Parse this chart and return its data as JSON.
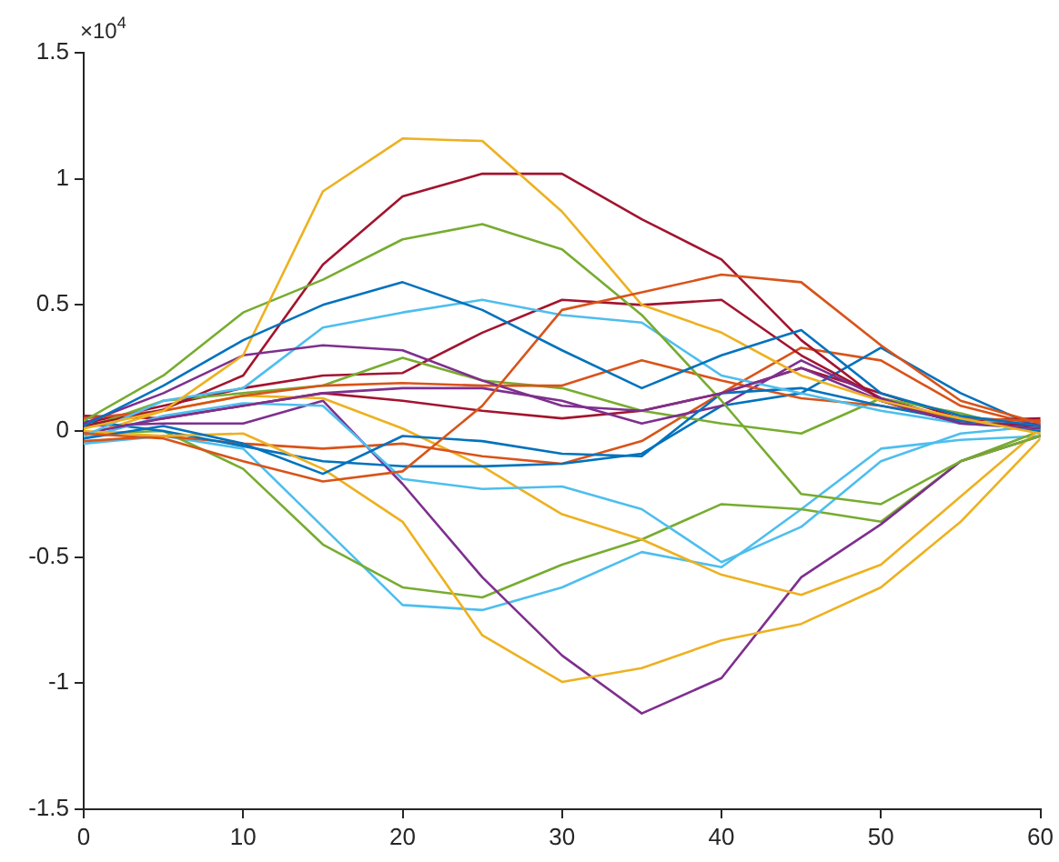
{
  "chart_data": {
    "type": "line",
    "x": [
      0,
      5,
      10,
      15,
      20,
      25,
      30,
      35,
      40,
      45,
      50,
      55,
      60
    ],
    "series": [
      {
        "color": "#0072bd",
        "values": [
          0.02,
          0.18,
          0.36,
          0.5,
          0.59,
          0.48,
          0.32,
          0.17,
          0.3,
          0.4,
          0.15,
          0.06,
          0.02
        ]
      },
      {
        "color": "#d95319",
        "values": [
          -0.01,
          -0.03,
          -0.12,
          -0.2,
          -0.16,
          0.1,
          0.48,
          0.55,
          0.62,
          0.59,
          0.34,
          0.12,
          0.03
        ]
      },
      {
        "color": "#edb120",
        "values": [
          0.01,
          0.08,
          0.3,
          0.95,
          1.16,
          1.15,
          0.87,
          0.5,
          0.39,
          0.22,
          0.12,
          0.05,
          -0.01
        ]
      },
      {
        "color": "#7e2f8e",
        "values": [
          0.03,
          0.15,
          0.3,
          0.34,
          0.32,
          0.2,
          0.1,
          0.08,
          0.15,
          0.25,
          0.12,
          0.03,
          0.01
        ]
      },
      {
        "color": "#77ac30",
        "values": [
          0.04,
          0.22,
          0.47,
          0.6,
          0.76,
          0.82,
          0.72,
          0.46,
          0.12,
          -0.25,
          -0.29,
          -0.12,
          -0.02
        ]
      },
      {
        "color": "#4dbeee",
        "values": [
          -0.02,
          0.12,
          0.17,
          0.41,
          0.47,
          0.52,
          0.46,
          0.43,
          0.22,
          0.15,
          0.08,
          0.03,
          0.01
        ]
      },
      {
        "color": "#a2142f",
        "values": [
          0.02,
          0.085,
          0.22,
          0.66,
          0.93,
          1.02,
          1.02,
          0.84,
          0.68,
          0.36,
          0.12,
          0.03,
          0.02
        ]
      },
      {
        "color": "#0072bd",
        "values": [
          -0.03,
          0.02,
          -0.05,
          -0.17,
          -0.02,
          -0.04,
          -0.09,
          -0.1,
          0.15,
          0.17,
          0.1,
          0.04,
          0
        ]
      },
      {
        "color": "#d95319",
        "values": [
          0.05,
          0.08,
          0.14,
          0.18,
          0.19,
          0.18,
          0.18,
          0.28,
          0.2,
          0.13,
          0.1,
          0.05,
          0.04
        ]
      },
      {
        "color": "#edb120",
        "values": [
          0,
          -0.02,
          -0.01,
          -0.15,
          -0.36,
          -0.81,
          -0.995,
          -0.94,
          -0.83,
          -0.765,
          -0.62,
          -0.36,
          -0.03
        ]
      },
      {
        "color": "#7e2f8e",
        "values": [
          -0.01,
          0.05,
          0.1,
          0.15,
          0.17,
          0.17,
          0.12,
          0.03,
          0.1,
          0.28,
          0.13,
          0.03,
          0.03
        ]
      },
      {
        "color": "#77ac30",
        "values": [
          0.01,
          0.12,
          0.15,
          0.18,
          0.29,
          0.2,
          0.17,
          0.08,
          0.03,
          -0.01,
          0.13,
          0.07,
          -0.01
        ]
      },
      {
        "color": "#4dbeee",
        "values": [
          -0.03,
          0.06,
          0.11,
          0.1,
          -0.19,
          -0.23,
          -0.22,
          -0.31,
          -0.52,
          -0.38,
          -0.12,
          -0.01,
          0.02
        ]
      },
      {
        "color": "#a2142f",
        "values": [
          0.03,
          0.1,
          0.17,
          0.22,
          0.23,
          0.39,
          0.52,
          0.5,
          0.52,
          0.3,
          0.13,
          0.04,
          0.05
        ]
      },
      {
        "color": "#0072bd",
        "values": [
          0.04,
          0,
          -0.06,
          -0.12,
          -0.14,
          -0.14,
          -0.13,
          -0.09,
          0.1,
          0.15,
          0.33,
          0.15,
          0.01
        ]
      },
      {
        "color": "#d95319",
        "values": [
          -0.04,
          -0.02,
          -0.05,
          -0.07,
          -0.05,
          -0.1,
          -0.13,
          -0.04,
          0.15,
          0.33,
          0.28,
          0.1,
          0.02
        ]
      },
      {
        "color": "#edb120",
        "values": [
          -0.02,
          0.08,
          0.14,
          0.13,
          0.01,
          -0.14,
          -0.33,
          -0.43,
          -0.57,
          -0.65,
          -0.53,
          -0.26,
          0.01
        ]
      },
      {
        "color": "#7e2f8e",
        "values": [
          0.02,
          0.03,
          0.03,
          0.12,
          -0.21,
          -0.58,
          -0.89,
          -1.12,
          -0.98,
          -0.58,
          -0.37,
          -0.12,
          -0.02
        ]
      },
      {
        "color": "#77ac30",
        "values": [
          -0.01,
          0,
          -0.15,
          -0.45,
          -0.62,
          -0.66,
          -0.53,
          -0.43,
          -0.29,
          -0.31,
          -0.36,
          -0.12,
          0
        ]
      },
      {
        "color": "#4dbeee",
        "values": [
          -0.05,
          -0.02,
          -0.07,
          -0.38,
          -0.69,
          -0.71,
          -0.62,
          -0.48,
          -0.54,
          -0.31,
          -0.07,
          -0.035,
          -0.02
        ]
      },
      {
        "color": "#a2142f",
        "values": [
          0.06,
          0.05,
          0.1,
          0.15,
          0.12,
          0.08,
          0.05,
          0.08,
          0.15,
          0.25,
          0.15,
          0.05,
          0.04
        ]
      }
    ],
    "xlim": [
      0,
      60
    ],
    "xticks": [
      0,
      10,
      20,
      30,
      40,
      50,
      60
    ],
    "ylim": [
      -1.5,
      1.5
    ],
    "yticks": [
      -1.5,
      -1,
      -0.5,
      0,
      0.5,
      1,
      1.5
    ],
    "annotations": [
      "×10$^{4}$"
    ],
    "grid": false,
    "legend": false,
    "marker": "none",
    "line_style": "solid"
  }
}
